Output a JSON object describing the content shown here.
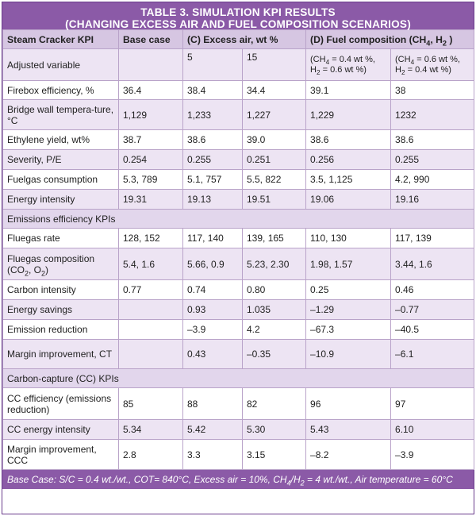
{
  "title_line1": "TABLE 3. SIMULATION KPI RESULTS",
  "title_line2": "(CHANGING EXCESS AIR AND FUEL COMPOSITION SCENARIOS)",
  "headers": {
    "kpi": "Steam Cracker KPI",
    "base": "Base case",
    "excess_air": "(C) Excess air, wt %",
    "fuel_comp_prefix": "(D) Fuel composition (CH",
    "fuel_comp_sub1": "4",
    "fuel_comp_mid": ", H",
    "fuel_comp_sub2": "2",
    "fuel_comp_suffix": " )"
  },
  "adjusted": {
    "label": "Adjusted variable",
    "base": "",
    "c1": "5",
    "c2": "15",
    "d1_a": "(CH",
    "d1_a_sub": "4",
    "d1_a_val": " = 0.4 wt %,",
    "d1_b": "H",
    "d1_b_sub": "2",
    "d1_b_val": " =  0.6 wt %)",
    "d2_a": "(CH",
    "d2_a_sub": "4",
    "d2_a_val": " = 0.6 wt %,",
    "d2_b": "H",
    "d2_b_sub": "2",
    "d2_b_val": " =  0.4 wt %)"
  },
  "rows_a": [
    {
      "kpi": "Firebox efficiency, %",
      "base": "36.4",
      "c1": "38.4",
      "c2": "34.4",
      "d1": "39.1",
      "d2": "38"
    },
    {
      "kpi": "Bridge wall tempera-ture, °C",
      "base": "1,129",
      "c1": "1,233",
      "c2": "1,227",
      "d1": "1,229",
      "d2": "1232"
    },
    {
      "kpi": "Ethylene yield, wt%",
      "base": "38.7",
      "c1": "38.6",
      "c2": "39.0",
      "d1": "38.6",
      "d2": "38.6"
    },
    {
      "kpi": "Severity, P/E",
      "base": "0.254",
      "c1": "0.255",
      "c2": "0.251",
      "d1": "0.256",
      "d2": "0.255"
    },
    {
      "kpi": "Fuelgas consumption",
      "base": "5.3, 789",
      "c1": "5.1, 757",
      "c2": "5.5, 822",
      "d1": "3.5, 1,125",
      "d2": "4.2, 990"
    },
    {
      "kpi": "Energy intensity",
      "base": "19.31",
      "c1": "19.13",
      "c2": "19.51",
      "d1": "19.06",
      "d2": "19.16"
    }
  ],
  "section_emissions": "Emissions efficiency KPIs",
  "fluegas_rate": {
    "kpi": "Fluegas rate",
    "base": "128, 152",
    "c1": "117, 140",
    "c2": "139, 165",
    "d1": "110, 130",
    "d2": "117, 139"
  },
  "fluegas_comp": {
    "kpi_line1": "Fluegas composition",
    "kpi_a": "(CO",
    "kpi_a_sub": "2",
    "kpi_b": ", O",
    "kpi_b_sub": "2",
    "kpi_c": ")",
    "base": "5.4, 1.6",
    "c1": "5.66, 0.9",
    "c2": "5.23, 2.30",
    "d1": "1.98, 1.57",
    "d2": "3.44, 1.6"
  },
  "rows_b": [
    {
      "kpi": "Carbon intensity",
      "base": "0.77",
      "c1": "0.74",
      "c2": "0.80",
      "d1": "0.25",
      "d2": "0.46"
    },
    {
      "kpi": "Energy savings",
      "base": "",
      "c1": "0.93",
      "c2": "1.035",
      "d1": "–1.29",
      "d2": "–0.77"
    },
    {
      "kpi": "Emission reduction",
      "base": "",
      "c1": "–3.9",
      "c2": "4.2",
      "d1": "–67.3",
      "d2": "–40.5"
    },
    {
      "kpi": "Margin improvement, CT",
      "base": "",
      "c1": "0.43",
      "c2": "–0.35",
      "d1": "–10.9",
      "d2": "–6.1"
    }
  ],
  "section_cc": "Carbon-capture (CC) KPIs",
  "rows_c": [
    {
      "kpi": "CC efficiency (emissions reduction)",
      "base": "85",
      "c1": "88",
      "c2": "82",
      "d1": "96",
      "d2": "97"
    },
    {
      "kpi": "CC energy intensity",
      "base": "5.34",
      "c1": "5.42",
      "c2": "5.30",
      "d1": "5.43",
      "d2": "6.10"
    },
    {
      "kpi": "Margin improvement, CCC",
      "base": "2.8",
      "c1": "3.3",
      "c2": "3.15",
      "d1": "–8.2",
      "d2": "–3.9"
    }
  ],
  "footer": {
    "part1": "Base Case: S/C = 0.4 wt./wt., COT= 840°C, Excess air = 10%, CH",
    "sub1": "4",
    "part2": "/H",
    "sub2": "2",
    "part3": " = 4 wt./wt., Air temperature = 60°C"
  },
  "colors": {
    "header_purple": "#8b5aa7",
    "header_row": "#d6c6e2",
    "lavender_row": "#ede4f3"
  }
}
